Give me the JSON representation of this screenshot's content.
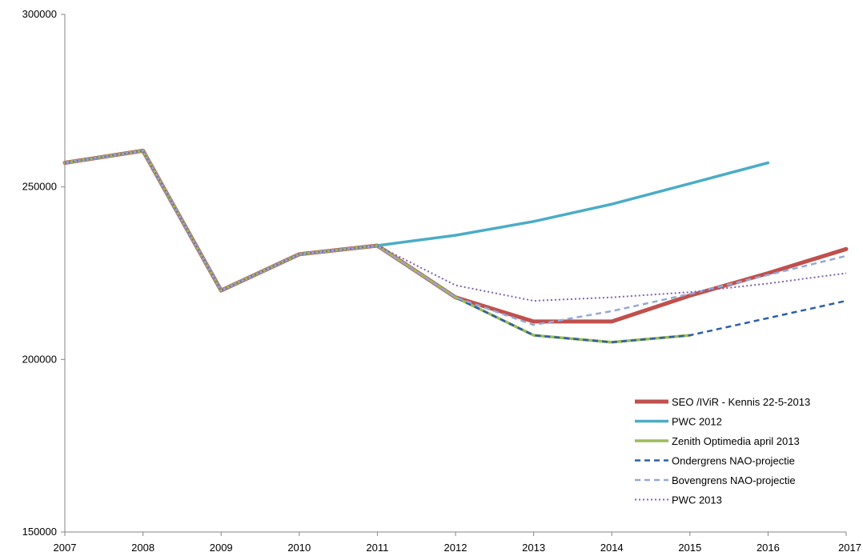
{
  "chart_data": {
    "type": "line",
    "title": "",
    "xlabel": "",
    "ylabel": "",
    "x": [
      "2007",
      "2008",
      "2009",
      "2010",
      "2011",
      "2012",
      "2013",
      "2014",
      "2015",
      "2016",
      "2017"
    ],
    "ylim": [
      150000,
      300000
    ],
    "yticks": [
      "150000",
      "200000",
      "250000",
      "300000"
    ],
    "grid": false,
    "legend_position": "bottom-right",
    "series": [
      {
        "name": "SEO /IViR - Kennis 22-5-2013",
        "color": "#C0504D",
        "style": "solid-thick",
        "values": [
          257000,
          260500,
          220000,
          230500,
          233000,
          218000,
          211000,
          211000,
          218500,
          225000,
          232000
        ]
      },
      {
        "name": "PWC 2012",
        "color": "#4BACC6",
        "style": "solid",
        "values": [
          257000,
          260500,
          220000,
          230500,
          233000,
          236000,
          240000,
          245000,
          251000,
          257000,
          null
        ]
      },
      {
        "name": "Zenith Optimedia april 2013",
        "color": "#9BBB59",
        "style": "solid",
        "values": [
          257000,
          260500,
          220000,
          230500,
          233000,
          218000,
          207000,
          205000,
          207000,
          null,
          null
        ]
      },
      {
        "name": "Ondergrens NAO-projectie",
        "color": "#2E5FA6",
        "style": "dashed",
        "values": [
          257000,
          260500,
          220000,
          230500,
          233000,
          218000,
          207000,
          205000,
          207000,
          212000,
          217000
        ]
      },
      {
        "name": "Bovengrens NAO-projectie",
        "color": "#95A9D6",
        "style": "dashed",
        "values": [
          257000,
          260500,
          220000,
          230500,
          233000,
          218000,
          210000,
          214000,
          219000,
          224500,
          230000
        ]
      },
      {
        "name": "PWC 2013",
        "color": "#7F62A8",
        "style": "dotted",
        "values": [
          257000,
          260500,
          220000,
          230500,
          233000,
          221500,
          217000,
          218000,
          219500,
          222000,
          225000
        ]
      }
    ]
  }
}
